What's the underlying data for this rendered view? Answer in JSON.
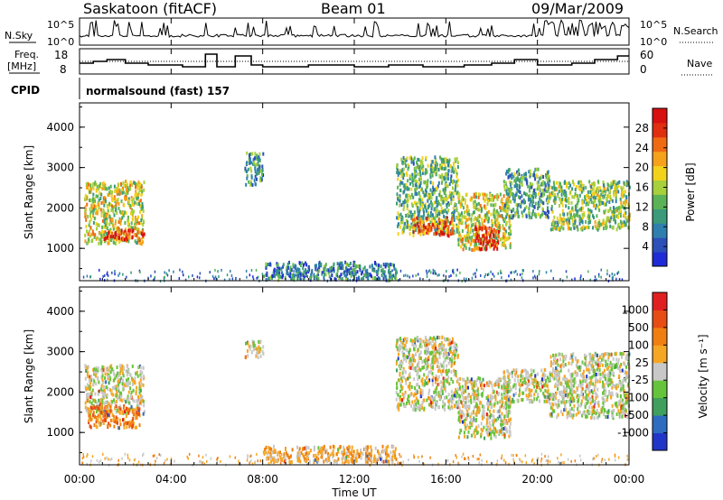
{
  "header": {
    "station": "Saskatoon (fitACF)",
    "beam": "Beam 01",
    "date": "09/Mar/2009"
  },
  "top_panels": {
    "nsky_label": "N.Sky",
    "nsky_ticks": [
      "10^5",
      "10^0"
    ],
    "nsearch_label": "N.Search",
    "freq_label_1": "Freq.",
    "freq_label_2": "[MHz]",
    "freq_ticks": [
      "18",
      "8"
    ],
    "nave_label": "Nave",
    "nave_ticks": [
      "60",
      "0"
    ],
    "cpid_label": "CPID",
    "cpid_text": "normalsound (fast) 157"
  },
  "chart_data": [
    {
      "type": "heatmap",
      "name": "power",
      "ylabel": "Slant Range [km]",
      "yticks": [
        "1000",
        "2000",
        "3000",
        "4000"
      ],
      "ylim": [
        200,
        4600
      ],
      "xlim": [
        0,
        24
      ],
      "colorbar_label": "Power [dB]",
      "colorbar_ticks": [
        "4",
        "8",
        "12",
        "16",
        "20",
        "24",
        "28"
      ],
      "colorscale": [
        "#1f2bd6",
        "#2c4fb8",
        "#2f7fae",
        "#3a9a7a",
        "#5cb357",
        "#a8cf3c",
        "#f2d21b",
        "#f5a21a",
        "#ef6a13",
        "#e02e10",
        "#d81010"
      ],
      "regions": [
        {
          "x0": 0.2,
          "x1": 2.8,
          "y0": 1150,
          "y1": 2700,
          "level": 0.55
        },
        {
          "x0": 1.0,
          "x1": 2.8,
          "y0": 1250,
          "y1": 1500,
          "level": 0.9
        },
        {
          "x0": 7.2,
          "x1": 8.0,
          "y0": 2600,
          "y1": 3400,
          "level": 0.3
        },
        {
          "x0": 8.0,
          "x1": 13.8,
          "y0": 250,
          "y1": 700,
          "level": 0.25
        },
        {
          "x0": 13.8,
          "x1": 16.5,
          "y0": 1400,
          "y1": 3300,
          "level": 0.4
        },
        {
          "x0": 14.5,
          "x1": 16.3,
          "y0": 1350,
          "y1": 1800,
          "level": 0.8
        },
        {
          "x0": 16.5,
          "x1": 18.8,
          "y0": 1000,
          "y1": 2400,
          "level": 0.55
        },
        {
          "x0": 17.2,
          "x1": 18.3,
          "y0": 1000,
          "y1": 1600,
          "level": 0.9
        },
        {
          "x0": 18.5,
          "x1": 20.5,
          "y0": 1800,
          "y1": 3000,
          "level": 0.35
        },
        {
          "x0": 20.5,
          "x1": 24.0,
          "y0": 1500,
          "y1": 2700,
          "level": 0.45
        }
      ]
    },
    {
      "type": "heatmap",
      "name": "velocity",
      "xlabel": "Time UT",
      "ylabel": "Slant Range [km]",
      "yticks": [
        "1000",
        "2000",
        "3000",
        "4000"
      ],
      "ylim": [
        200,
        4600
      ],
      "xticks": [
        "00:00",
        "04:00",
        "08:00",
        "12:00",
        "16:00",
        "20:00",
        "00:00"
      ],
      "xlim": [
        0,
        24
      ],
      "colorbar_label": "Velocity [m s⁻¹]",
      "colorbar_ticks": [
        "1000",
        "500",
        "100",
        "25",
        "-25",
        "-100",
        "-500",
        "-1000"
      ],
      "colorscale": [
        "#2036c8",
        "#2e6cc0",
        "#3f9f5c",
        "#66c43a",
        "#c8c8c8",
        "#f5a623",
        "#f07f12",
        "#e74c14",
        "#e02020"
      ],
      "regions": [
        {
          "x0": 0.2,
          "x1": 2.8,
          "y0": 1500,
          "y1": 2700,
          "level": 0.5
        },
        {
          "x0": 0.3,
          "x1": 2.6,
          "y0": 1150,
          "y1": 1700,
          "level": 0.72
        },
        {
          "x0": 7.2,
          "x1": 8.0,
          "y0": 2900,
          "y1": 3300,
          "level": 0.5
        },
        {
          "x0": 8.0,
          "x1": 13.8,
          "y0": 300,
          "y1": 700,
          "level": 0.62
        },
        {
          "x0": 13.8,
          "x1": 16.5,
          "y0": 1600,
          "y1": 3400,
          "level": 0.5
        },
        {
          "x0": 16.5,
          "x1": 18.8,
          "y0": 900,
          "y1": 2400,
          "level": 0.5
        },
        {
          "x0": 18.5,
          "x1": 20.5,
          "y0": 1800,
          "y1": 2600,
          "level": 0.5
        },
        {
          "x0": 20.5,
          "x1": 24.0,
          "y0": 1400,
          "y1": 3000,
          "level": 0.5
        }
      ]
    }
  ]
}
